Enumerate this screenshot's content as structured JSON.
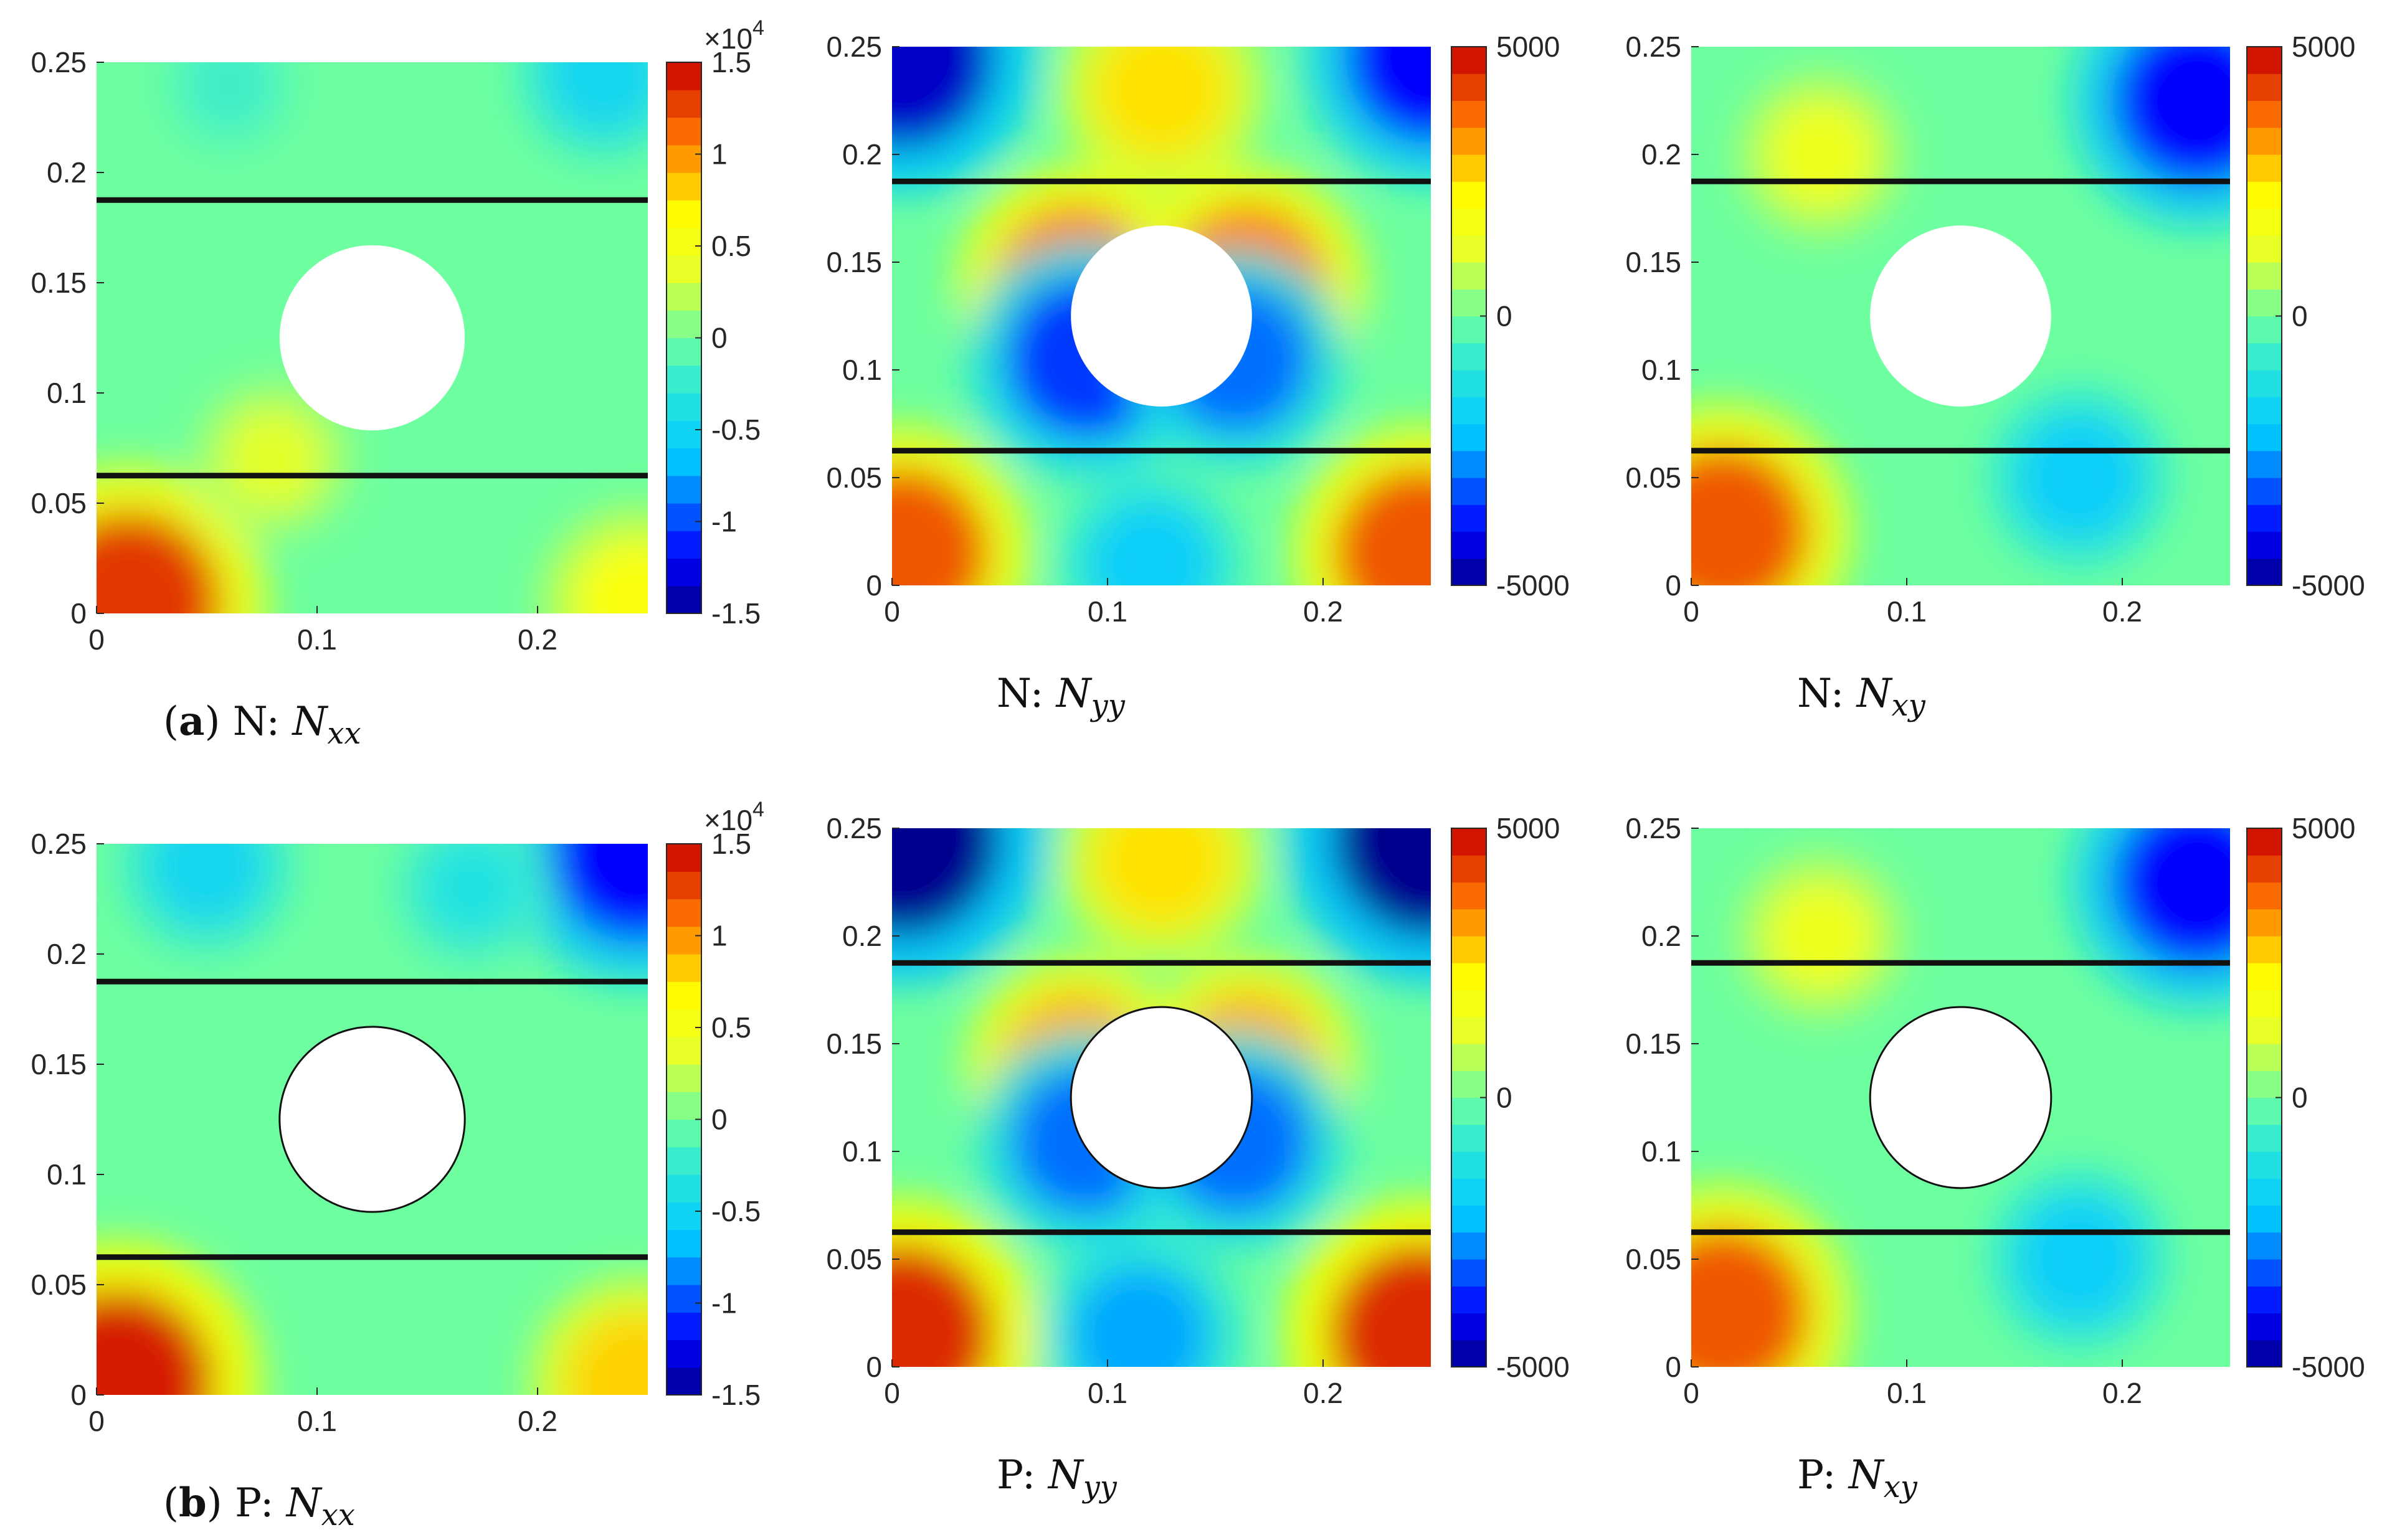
{
  "chart_data": [
    {
      "type": "heatmap",
      "panel": "a-left",
      "group": "N",
      "component": "xx",
      "caption_tag": "(a)",
      "caption_prefix": "N:",
      "xlim": [
        0,
        0.25
      ],
      "ylim": [
        0,
        0.25
      ],
      "xticks": [
        "0",
        "0.1",
        "0.2"
      ],
      "yticks": [
        "0",
        "0.05",
        "0.1",
        "0.15",
        "0.2",
        "0.25"
      ],
      "colorbar": {
        "min": -15000,
        "max": 15000,
        "exponent_label": "×10",
        "exponent_power": "4",
        "ticks": [
          "1.5",
          "1",
          "0.5",
          "0",
          "-0.5",
          "-1",
          "-1.5"
        ]
      },
      "hole": {
        "cx": 0.125,
        "cy": 0.125,
        "r": 0.042,
        "outlined": false
      },
      "lines_y": [
        0.0625,
        0.1875
      ],
      "field_hotspots": [
        {
          "x": 0.015,
          "y": 0.005,
          "value": 13000
        },
        {
          "x": 0.245,
          "y": 0.005,
          "value": 6000
        },
        {
          "x": 0.08,
          "y": 0.07,
          "value": 3500
        },
        {
          "x": 0.23,
          "y": 0.245,
          "value": -5000
        },
        {
          "x": 0.06,
          "y": 0.24,
          "value": -2000
        }
      ]
    },
    {
      "type": "heatmap",
      "panel": "a-mid",
      "group": "N",
      "component": "yy",
      "caption_tag": "",
      "caption_prefix": "N:",
      "xlim": [
        0,
        0.25
      ],
      "ylim": [
        0,
        0.25
      ],
      "xticks": [
        "0",
        "0.1",
        "0.2"
      ],
      "yticks": [
        "0",
        "0.05",
        "0.1",
        "0.15",
        "0.2",
        "0.25"
      ],
      "colorbar": {
        "min": -5000,
        "max": 5000,
        "exponent_label": "",
        "exponent_power": "",
        "ticks": [
          "5000",
          "0",
          "-5000"
        ]
      },
      "hole": {
        "cx": 0.125,
        "cy": 0.125,
        "r": 0.042,
        "outlined": false
      },
      "lines_y": [
        0.0625,
        0.1875
      ],
      "field_hotspots": [
        {
          "x": 0.005,
          "y": 0.245,
          "value": -4500
        },
        {
          "x": 0.25,
          "y": 0.245,
          "value": -4000
        },
        {
          "x": 0.005,
          "y": 0.015,
          "value": 4000
        },
        {
          "x": 0.245,
          "y": 0.015,
          "value": 4000
        },
        {
          "x": 0.125,
          "y": 0.23,
          "value": 2500
        },
        {
          "x": 0.12,
          "y": 0.01,
          "value": -2000
        },
        {
          "x": 0.085,
          "y": 0.14,
          "value": 3500
        },
        {
          "x": 0.165,
          "y": 0.14,
          "value": 3500
        },
        {
          "x": 0.09,
          "y": 0.105,
          "value": -3500
        },
        {
          "x": 0.16,
          "y": 0.105,
          "value": -3000
        }
      ]
    },
    {
      "type": "heatmap",
      "panel": "a-right",
      "group": "N",
      "component": "xy",
      "caption_tag": "",
      "caption_prefix": "N:",
      "xlim": [
        0,
        0.25
      ],
      "ylim": [
        0,
        0.25
      ],
      "xticks": [
        "0",
        "0.1",
        "0.2"
      ],
      "yticks": [
        "0",
        "0.05",
        "0.1",
        "0.15",
        "0.2",
        "0.25"
      ],
      "colorbar": {
        "min": -5000,
        "max": 5000,
        "exponent_label": "",
        "exponent_power": "",
        "ticks": [
          "5000",
          "0",
          "-5000"
        ]
      },
      "hole": {
        "cx": 0.125,
        "cy": 0.125,
        "r": 0.042,
        "outlined": false
      },
      "lines_y": [
        0.0625,
        0.1875
      ],
      "field_hotspots": [
        {
          "x": 0.015,
          "y": 0.025,
          "value": 4000
        },
        {
          "x": 0.235,
          "y": 0.225,
          "value": -4000
        },
        {
          "x": 0.18,
          "y": 0.05,
          "value": -2000
        },
        {
          "x": 0.06,
          "y": 0.2,
          "value": 1500
        }
      ]
    },
    {
      "type": "heatmap",
      "panel": "b-left",
      "group": "P",
      "component": "xx",
      "caption_tag": "(b)",
      "caption_prefix": "P:",
      "xlim": [
        0,
        0.25
      ],
      "ylim": [
        0,
        0.25
      ],
      "xticks": [
        "0",
        "0.1",
        "0.2"
      ],
      "yticks": [
        "0",
        "0.05",
        "0.1",
        "0.15",
        "0.2",
        "0.25"
      ],
      "colorbar": {
        "min": -15000,
        "max": 15000,
        "exponent_label": "×10",
        "exponent_power": "4",
        "ticks": [
          "1.5",
          "1",
          "0.5",
          "0",
          "-0.5",
          "-1",
          "-1.5"
        ]
      },
      "hole": {
        "cx": 0.125,
        "cy": 0.125,
        "r": 0.042,
        "outlined": true
      },
      "lines_y": [
        0.0625,
        0.1875
      ],
      "field_hotspots": [
        {
          "x": 0.01,
          "y": 0.005,
          "value": 14000
        },
        {
          "x": 0.245,
          "y": 0.005,
          "value": 8000
        },
        {
          "x": 0.245,
          "y": 0.245,
          "value": -12000
        },
        {
          "x": 0.05,
          "y": 0.24,
          "value": -5000
        },
        {
          "x": 0.17,
          "y": 0.23,
          "value": -3500
        }
      ]
    },
    {
      "type": "heatmap",
      "panel": "b-mid",
      "group": "P",
      "component": "yy",
      "caption_tag": "",
      "caption_prefix": "P:",
      "xlim": [
        0,
        0.25
      ],
      "ylim": [
        0,
        0.25
      ],
      "xticks": [
        "0",
        "0.1",
        "0.2"
      ],
      "yticks": [
        "0",
        "0.05",
        "0.1",
        "0.15",
        "0.2",
        "0.25"
      ],
      "colorbar": {
        "min": -5000,
        "max": 5000,
        "exponent_label": "",
        "exponent_power": "",
        "ticks": [
          "5000",
          "0",
          "-5000"
        ]
      },
      "hole": {
        "cx": 0.125,
        "cy": 0.125,
        "r": 0.042,
        "outlined": true
      },
      "lines_y": [
        0.0625,
        0.1875
      ],
      "field_hotspots": [
        {
          "x": 0.005,
          "y": 0.245,
          "value": -5000
        },
        {
          "x": 0.25,
          "y": 0.245,
          "value": -5000
        },
        {
          "x": 0.005,
          "y": 0.015,
          "value": 4500
        },
        {
          "x": 0.245,
          "y": 0.015,
          "value": 4500
        },
        {
          "x": 0.125,
          "y": 0.235,
          "value": 2500
        },
        {
          "x": 0.115,
          "y": 0.015,
          "value": -2500
        },
        {
          "x": 0.085,
          "y": 0.14,
          "value": 3000
        },
        {
          "x": 0.165,
          "y": 0.14,
          "value": 3000
        },
        {
          "x": 0.09,
          "y": 0.105,
          "value": -3000
        },
        {
          "x": 0.16,
          "y": 0.105,
          "value": -3000
        }
      ]
    },
    {
      "type": "heatmap",
      "panel": "b-right",
      "group": "P",
      "component": "xy",
      "caption_tag": "",
      "caption_prefix": "P:",
      "xlim": [
        0,
        0.25
      ],
      "ylim": [
        0,
        0.25
      ],
      "xticks": [
        "0",
        "0.1",
        "0.2"
      ],
      "yticks": [
        "0",
        "0.05",
        "0.1",
        "0.15",
        "0.2",
        "0.25"
      ],
      "colorbar": {
        "min": -5000,
        "max": 5000,
        "exponent_label": "",
        "exponent_power": "",
        "ticks": [
          "5000",
          "0",
          "-5000"
        ]
      },
      "hole": {
        "cx": 0.125,
        "cy": 0.125,
        "r": 0.042,
        "outlined": true
      },
      "lines_y": [
        0.0625,
        0.1875
      ],
      "field_hotspots": [
        {
          "x": 0.015,
          "y": 0.025,
          "value": 4000
        },
        {
          "x": 0.235,
          "y": 0.225,
          "value": -4000
        },
        {
          "x": 0.18,
          "y": 0.05,
          "value": -2000
        },
        {
          "x": 0.06,
          "y": 0.2,
          "value": 1500
        }
      ]
    }
  ]
}
